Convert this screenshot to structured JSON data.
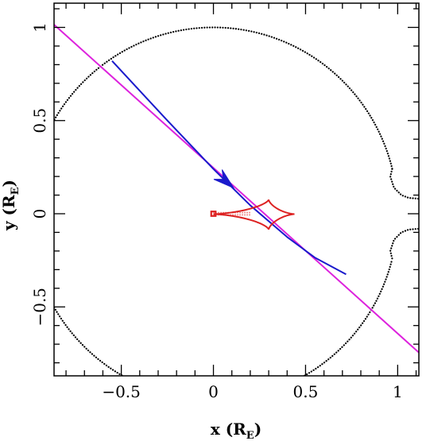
{
  "chart_data": {
    "type": "line",
    "title": "",
    "xlabel": "x (R",
    "xlabel_sub": "E",
    "xlabel_end": ")",
    "ylabel": "y (R",
    "ylabel_sub": "E",
    "ylabel_end": ")",
    "xlim": [
      -0.865,
      1.115
    ],
    "ylim": [
      -0.87,
      1.13
    ],
    "x_ticks": [
      -0.5,
      0,
      0.5,
      1
    ],
    "x_tick_labels": [
      "−0.5",
      "0",
      "0.5",
      "1"
    ],
    "y_ticks": [
      -0.5,
      0,
      0.5,
      1
    ],
    "y_tick_labels": [
      "−0.5",
      "0",
      "0.5",
      "1"
    ],
    "grid": false,
    "colors": {
      "critical_curve": "#000000",
      "source_line": "#dd22dd",
      "caustic": "#dd2222",
      "trajectory": "#1a1acc"
    },
    "series": [
      {
        "key": "critical_curve",
        "style": "dotted",
        "description": "Einstein-ring critical curve (two closed dotted curves, planet on the right)"
      },
      {
        "key": "source_line",
        "style": "solid",
        "x": [
          -0.865,
          1.115
        ],
        "y": [
          1.015,
          -0.745
        ]
      },
      {
        "key": "trajectory",
        "style": "solid",
        "x": [
          -0.55,
          -0.25,
          0.0,
          0.2,
          0.4,
          0.55,
          0.72
        ],
        "y": [
          0.82,
          0.5,
          0.24,
          0.045,
          -0.125,
          -0.235,
          -0.325
        ],
        "arrow_at": [
          0.09,
          0.155
        ]
      },
      {
        "key": "caustic",
        "style": "solid",
        "description": "Planetary caustic (asymmetric four-cusp shape near x=0.3) plus small central caustic near origin"
      }
    ]
  }
}
